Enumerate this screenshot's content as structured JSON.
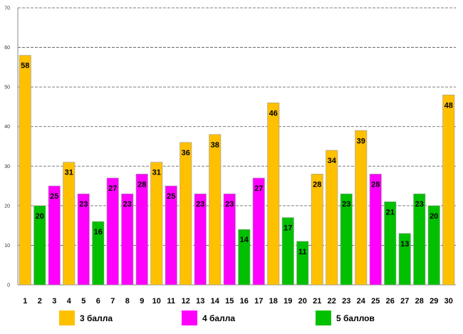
{
  "chart_data": {
    "type": "bar",
    "title": "",
    "xlabel": "",
    "ylabel": "",
    "ylim": [
      0,
      70
    ],
    "yticks": [
      0,
      10,
      20,
      30,
      40,
      50,
      60,
      70
    ],
    "grid": true,
    "legend_position": "bottom",
    "categories": [
      "1",
      "2",
      "3",
      "4",
      "5",
      "6",
      "7",
      "8",
      "9",
      "10",
      "11",
      "12",
      "13",
      "14",
      "15",
      "16",
      "17",
      "18",
      "19",
      "20",
      "21",
      "22",
      "23",
      "24",
      "25",
      "26",
      "27",
      "28",
      "29",
      "30"
    ],
    "values": [
      58,
      20,
      25,
      31,
      23,
      16,
      27,
      23,
      28,
      31,
      25,
      36,
      23,
      38,
      23,
      14,
      27,
      46,
      17,
      11,
      28,
      34,
      23,
      39,
      28,
      21,
      13,
      23,
      20,
      48
    ],
    "series_index": [
      0,
      2,
      1,
      0,
      1,
      2,
      1,
      1,
      1,
      0,
      1,
      0,
      1,
      0,
      1,
      2,
      1,
      0,
      2,
      2,
      0,
      0,
      2,
      0,
      1,
      2,
      2,
      2,
      2,
      0
    ],
    "series": [
      {
        "name": "3 балла",
        "color": "#FFC000"
      },
      {
        "name": "4 балла",
        "color": "#FF00FF"
      },
      {
        "name": "5 баллов",
        "color": "#00C000"
      }
    ]
  }
}
